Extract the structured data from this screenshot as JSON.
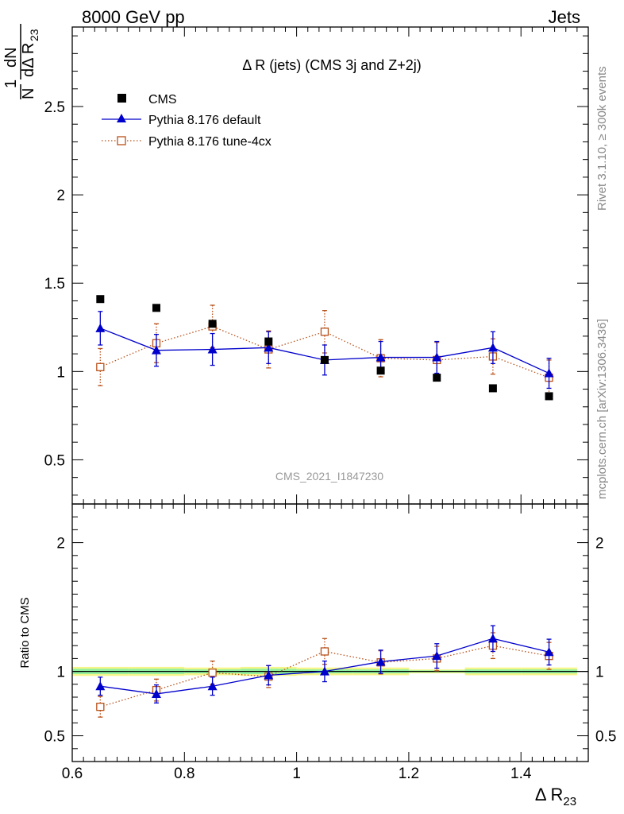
{
  "header": {
    "left": "8000 GeV pp",
    "right": "Jets"
  },
  "side_labels": {
    "rivet": "Rivet 3.1.10, ≥ 300k events",
    "mcplots": "mcplots.cern.ch [arXiv:1306.3436]"
  },
  "chart_data": {
    "type": "scatter",
    "title": "Δ R (jets) (CMS 3j and Z+2j)",
    "watermark": "CMS_2021_I1847230",
    "xlabel": "Δ R",
    "xlabel_sub": "23",
    "ylabel_num": "1",
    "ylabel_den": "N",
    "ylabel_dnum": "dN",
    "ylabel_dden": "dΔ R",
    "ylabel_dden_sub": "23",
    "ratio_ylabel": "Ratio to CMS",
    "xlim": [
      0.6,
      1.52
    ],
    "ylim": [
      0.25,
      2.95
    ],
    "ratio_ylim": [
      0.3,
      2.3
    ],
    "x_ticks": [
      "0.6",
      "0.8",
      "1",
      "1.2",
      "1.4"
    ],
    "y_ticks": [
      "0.5",
      "1",
      "1.5",
      "2",
      "2.5"
    ],
    "ratio_ticks": [
      "0.5",
      "1",
      "2"
    ],
    "ratio_ticks_right": [
      "0.5",
      "1",
      "2"
    ],
    "x": [
      0.65,
      0.75,
      0.85,
      0.95,
      1.05,
      1.15,
      1.25,
      1.35,
      1.45
    ],
    "bin_edges": [
      0.6,
      0.7,
      0.8,
      0.9,
      1.0,
      1.1,
      1.2,
      1.3,
      1.4,
      1.5
    ],
    "series": [
      {
        "name": "CMS",
        "color": "#000000",
        "marker": "square",
        "values": [
          1.41,
          1.36,
          1.27,
          1.17,
          1.065,
          1.005,
          0.965,
          0.905,
          0.86
        ],
        "band_outer": [
          0.035,
          0.035,
          0.03,
          0.035,
          0.03,
          0.03,
          0.015,
          0.03,
          0.03
        ],
        "band_inner": [
          0.02,
          0.02,
          0.015,
          0.02,
          0.015,
          0.015,
          0.008,
          0.015,
          0.015
        ]
      },
      {
        "name": "Pythia 8.176 default",
        "color": "#0000cc",
        "marker": "triangle",
        "values": [
          1.245,
          1.12,
          1.125,
          1.135,
          1.065,
          1.08,
          1.08,
          1.135,
          0.99
        ],
        "errors": [
          0.095,
          0.09,
          0.09,
          0.09,
          0.085,
          0.09,
          0.09,
          0.09,
          0.085
        ],
        "ratio": [
          0.885,
          0.825,
          0.885,
          0.97,
          1.0,
          1.075,
          1.12,
          1.255,
          1.15
        ],
        "ratio_errors": [
          0.07,
          0.07,
          0.07,
          0.075,
          0.08,
          0.09,
          0.095,
          0.1,
          0.1
        ]
      },
      {
        "name": "Pythia 8.176 tune-4cx",
        "color": "#b8511a",
        "marker": "open-square",
        "values": [
          1.025,
          1.16,
          1.255,
          1.125,
          1.225,
          1.075,
          1.065,
          1.085,
          0.965
        ],
        "errors": [
          0.105,
          0.11,
          0.12,
          0.105,
          0.12,
          0.105,
          0.1,
          0.1,
          0.1
        ],
        "ratio": [
          0.725,
          0.855,
          0.99,
          0.96,
          1.155,
          1.07,
          1.1,
          1.2,
          1.12
        ],
        "ratio_errors": [
          0.08,
          0.085,
          0.09,
          0.085,
          0.1,
          0.09,
          0.095,
          0.1,
          0.105
        ]
      }
    ]
  }
}
